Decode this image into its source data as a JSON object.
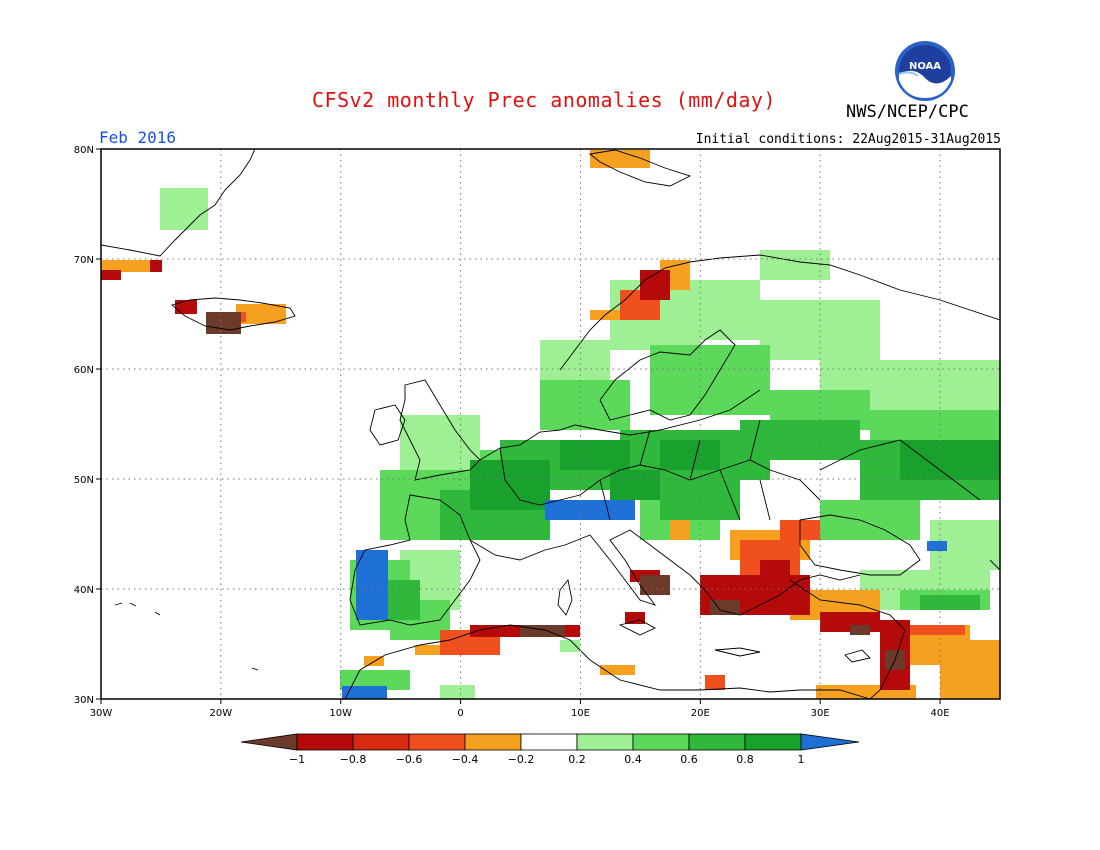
{
  "header": {
    "title": "CFSv2 monthly Prec anomalies (mm/day)",
    "agency": "NWS/NCEP/CPC",
    "logo_text": "NOAA",
    "month": "Feb 2016",
    "initial_conditions": "Initial conditions: 22Aug2015-31Aug2015"
  },
  "map": {
    "projection": "lat-lon",
    "lon_range": [
      -30,
      45
    ],
    "lat_range": [
      30,
      80
    ],
    "grid": "dotted",
    "lat_labels": [
      "30N",
      "40N",
      "50N",
      "60N",
      "70N",
      "80N"
    ],
    "lon_labels": [
      "30W",
      "20W",
      "10W",
      "0",
      "10E",
      "20E",
      "30E",
      "40E"
    ],
    "lat_values": [
      30,
      40,
      50,
      60,
      70,
      80
    ],
    "lon_values": [
      -30,
      -20,
      -10,
      0,
      10,
      20,
      30,
      40
    ]
  },
  "colorbar": {
    "labels": [
      "-1",
      "-0.8",
      "-0.6",
      "-0.4",
      "-0.2",
      "0.2",
      "0.4",
      "0.6",
      "0.8",
      "1"
    ],
    "colors": {
      "lt_-1": "#6b3a2a",
      "-1_-0.8": "#b40a0a",
      "-0.8_-0.6": "#d62b10",
      "-0.6_-0.4": "#f0501e",
      "-0.4_-0.2": "#f5a01e",
      "-0.2_0.2": "#ffffff",
      "0.2_0.4": "#9fef95",
      "0.4_0.6": "#5cd85a",
      "0.6_0.8": "#2fb83c",
      "0.8_1": "#18a12c",
      "gt_1": "#1e6fd6"
    }
  }
}
